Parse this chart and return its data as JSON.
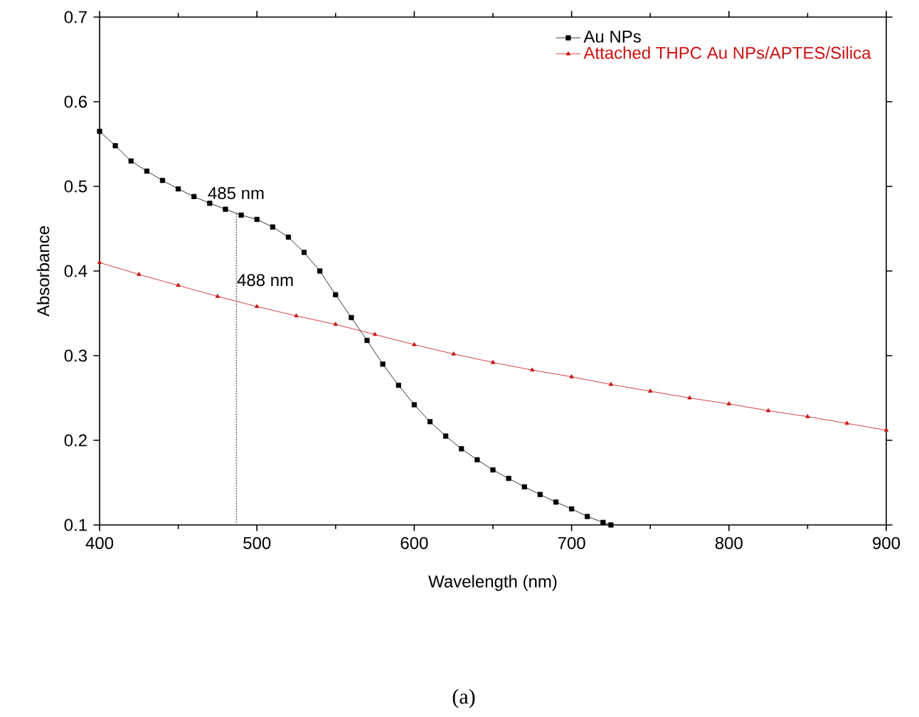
{
  "chart_data": {
    "type": "line",
    "xlabel": "Wavelength (nm)",
    "ylabel": "Absorbance",
    "xlim": [
      400,
      900
    ],
    "ylim": [
      0.1,
      0.7
    ],
    "xticks": [
      400,
      500,
      600,
      700,
      800,
      900
    ],
    "yticks": [
      0.1,
      0.2,
      0.3,
      0.4,
      0.5,
      0.6,
      0.7
    ],
    "legend": "top right",
    "grid": false,
    "series": [
      {
        "name": "Au NPs",
        "color": "#000000",
        "marker": "square",
        "x": [
          400,
          410,
          420,
          430,
          440,
          450,
          460,
          470,
          480,
          490,
          500,
          510,
          520,
          530,
          540,
          550,
          560,
          570,
          580,
          590,
          600,
          610,
          620,
          630,
          640,
          650,
          660,
          670,
          680,
          690,
          700,
          710,
          720,
          725
        ],
        "values": [
          0.565,
          0.548,
          0.53,
          0.518,
          0.507,
          0.497,
          0.488,
          0.48,
          0.473,
          0.466,
          0.461,
          0.452,
          0.44,
          0.422,
          0.4,
          0.372,
          0.345,
          0.318,
          0.29,
          0.265,
          0.242,
          0.222,
          0.205,
          0.19,
          0.177,
          0.165,
          0.155,
          0.145,
          0.136,
          0.127,
          0.119,
          0.11,
          0.103,
          0.1
        ]
      },
      {
        "name": "Attached THPC Au NPs/APTES/Silica",
        "color": "#cc1111",
        "marker": "triangle",
        "x": [
          400,
          425,
          450,
          475,
          500,
          525,
          550,
          575,
          600,
          625,
          650,
          675,
          700,
          725,
          750,
          775,
          800,
          825,
          850,
          875,
          900
        ],
        "values": [
          0.41,
          0.396,
          0.383,
          0.37,
          0.358,
          0.347,
          0.337,
          0.325,
          0.313,
          0.302,
          0.292,
          0.283,
          0.275,
          0.266,
          0.258,
          0.25,
          0.243,
          0.235,
          0.228,
          0.22,
          0.212
        ]
      }
    ],
    "ref_lines": [
      {
        "axis": "x",
        "value": 487,
        "line_style": "dotted",
        "color": "#555555"
      }
    ],
    "annotations": [
      {
        "text": "485 nm",
        "x": 485,
        "y": 0.466
      },
      {
        "text": "488 nm",
        "x": 488,
        "y": 0.36
      },
      "(a)"
    ]
  }
}
